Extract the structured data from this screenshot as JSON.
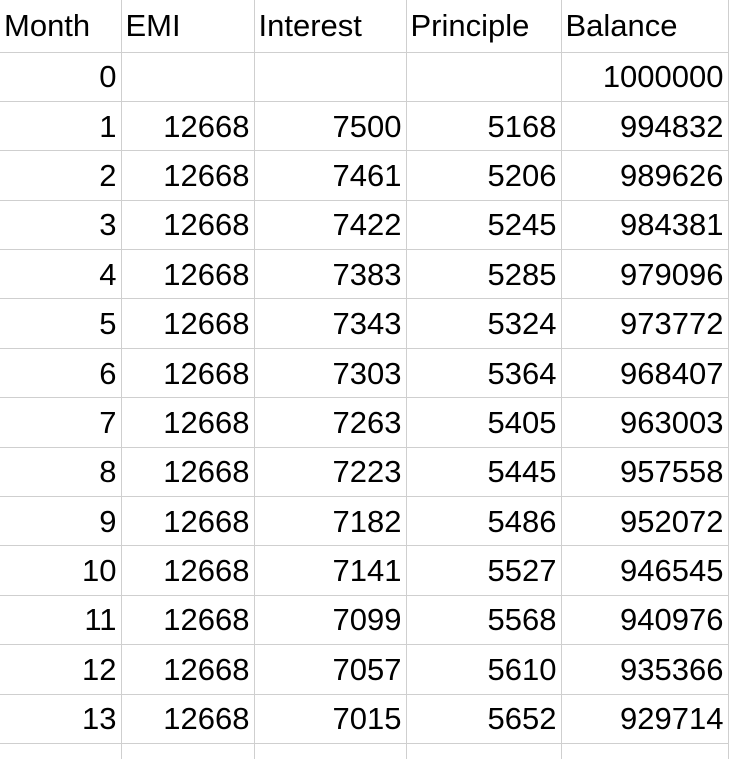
{
  "table": {
    "headers": [
      "Month",
      "EMI",
      "Interest",
      "Principle",
      "Balance"
    ],
    "rows": [
      [
        "0",
        "",
        "",
        "",
        "1000000"
      ],
      [
        "1",
        "12668",
        "7500",
        "5168",
        "994832"
      ],
      [
        "2",
        "12668",
        "7461",
        "5206",
        "989626"
      ],
      [
        "3",
        "12668",
        "7422",
        "5245",
        "984381"
      ],
      [
        "4",
        "12668",
        "7383",
        "5285",
        "979096"
      ],
      [
        "5",
        "12668",
        "7343",
        "5324",
        "973772"
      ],
      [
        "6",
        "12668",
        "7303",
        "5364",
        "968407"
      ],
      [
        "7",
        "12668",
        "7263",
        "5405",
        "963003"
      ],
      [
        "8",
        "12668",
        "7223",
        "5445",
        "957558"
      ],
      [
        "9",
        "12668",
        "7182",
        "5486",
        "952072"
      ],
      [
        "10",
        "12668",
        "7141",
        "5527",
        "946545"
      ],
      [
        "11",
        "12668",
        "7099",
        "5568",
        "940976"
      ],
      [
        "12",
        "12668",
        "7057",
        "5610",
        "935366"
      ],
      [
        "13",
        "12668",
        "7015",
        "5652",
        "929714"
      ]
    ]
  },
  "colors": {
    "gridline": "#cfcfcf",
    "text": "#000000",
    "background": "#ffffff"
  }
}
